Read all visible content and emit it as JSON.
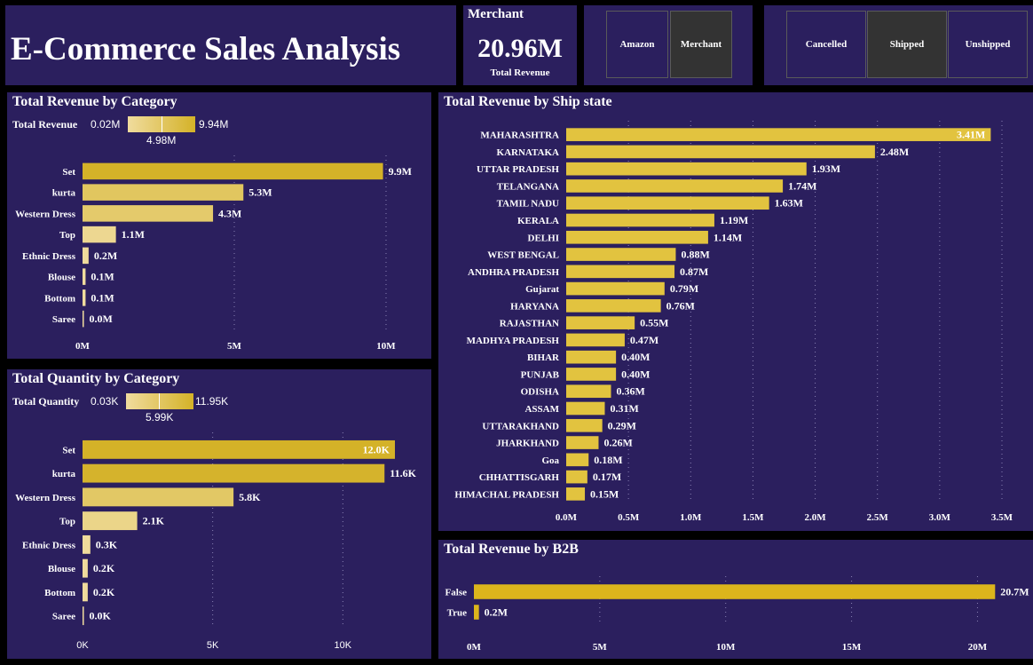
{
  "header": {
    "title": "E-Commerce Sales Analysis"
  },
  "card": {
    "label": "Merchant",
    "value": "20.96M",
    "sub": "Total Revenue"
  },
  "slicer_fulfilment": {
    "options": [
      "Amazon",
      "Merchant"
    ],
    "selected": "Merchant"
  },
  "slicer_status": {
    "options": [
      "Cancelled",
      "Shipped",
      "Unshipped"
    ],
    "selected": "Shipped"
  },
  "charts": [
    {
      "id": "rev-cat",
      "title": "Total Revenue by Category",
      "legend": {
        "label": "Total Revenue",
        "min": "0.02M",
        "max": "9.94M",
        "mid": "4.98M"
      },
      "chart_data": {
        "type": "bar",
        "orientation": "horizontal",
        "categories": [
          "Set",
          "kurta",
          "Western Dress",
          "Top",
          "Ethnic Dress",
          "Blouse",
          "Bottom",
          "Saree"
        ],
        "values": [
          9.9,
          5.3,
          4.3,
          1.1,
          0.2,
          0.1,
          0.1,
          0.0
        ],
        "value_labels": [
          "9.9M",
          "5.3M",
          "4.3M",
          "1.1M",
          "0.2M",
          "0.1M",
          "0.1M",
          "0.0M"
        ],
        "xlim": [
          0,
          10
        ],
        "xticks": [
          0,
          5,
          10
        ],
        "xtick_labels": [
          "0M",
          "5M",
          "10M"
        ],
        "color_scale": [
          "#f0dc9e",
          "#d4b228"
        ],
        "grid": true
      }
    },
    {
      "id": "qty-cat",
      "title": "Total Quantity by Category",
      "legend": {
        "label": "Total Quantity",
        "min": "0.03K",
        "max": "11.95K",
        "mid": "5.99K"
      },
      "chart_data": {
        "type": "bar",
        "orientation": "horizontal",
        "categories": [
          "Set",
          "kurta",
          "Western Dress",
          "Top",
          "Ethnic Dress",
          "Blouse",
          "Bottom",
          "Saree"
        ],
        "values": [
          12.0,
          11.6,
          5.8,
          2.1,
          0.3,
          0.2,
          0.2,
          0.0
        ],
        "value_labels": [
          "12.0K",
          "11.6K",
          "5.8K",
          "2.1K",
          "0.3K",
          "0.2K",
          "0.2K",
          "0.0K"
        ],
        "xlim": [
          0,
          12
        ],
        "xticks": [
          0,
          5,
          10
        ],
        "xtick_labels": [
          "0K",
          "5K",
          "10K"
        ],
        "color_scale": [
          "#f0dc9e",
          "#d4b228"
        ],
        "grid": true
      }
    },
    {
      "id": "rev-state",
      "title": "Total Revenue by Ship state",
      "chart_data": {
        "type": "bar",
        "orientation": "horizontal",
        "categories": [
          "MAHARASHTRA",
          "KARNATAKA",
          "UTTAR PRADESH",
          "TELANGANA",
          "TAMIL NADU",
          "KERALA",
          "DELHI",
          "WEST BENGAL",
          "ANDHRA PRADESH",
          "Gujarat",
          "HARYANA",
          "RAJASTHAN",
          "MADHYA PRADESH",
          "BIHAR",
          "PUNJAB",
          "ODISHA",
          "ASSAM",
          "UTTARAKHAND",
          "JHARKHAND",
          "Goa",
          "CHHATTISGARH",
          "HIMACHAL PRADESH"
        ],
        "values": [
          3.41,
          2.48,
          1.93,
          1.74,
          1.63,
          1.19,
          1.14,
          0.88,
          0.87,
          0.79,
          0.76,
          0.55,
          0.47,
          0.4,
          0.4,
          0.36,
          0.31,
          0.29,
          0.26,
          0.18,
          0.17,
          0.15
        ],
        "value_labels": [
          "3.41M",
          "2.48M",
          "1.93M",
          "1.74M",
          "1.63M",
          "1.19M",
          "1.14M",
          "0.88M",
          "0.87M",
          "0.79M",
          "0.76M",
          "0.55M",
          "0.47M",
          "0.40M",
          "0.40M",
          "0.36M",
          "0.31M",
          "0.29M",
          "0.26M",
          "0.18M",
          "0.17M",
          "0.15M"
        ],
        "xlim": [
          0,
          3.5
        ],
        "xticks": [
          0,
          0.5,
          1.0,
          1.5,
          2.0,
          2.5,
          3.0,
          3.5
        ],
        "xtick_labels": [
          "0.0M",
          "0.5M",
          "1.0M",
          "1.5M",
          "2.0M",
          "2.5M",
          "3.0M",
          "3.5M"
        ],
        "color": "#e2c33f",
        "grid": true
      }
    },
    {
      "id": "rev-b2b",
      "title": "Total Revenue by B2B",
      "chart_data": {
        "type": "bar",
        "orientation": "horizontal",
        "categories": [
          "False",
          "True"
        ],
        "values": [
          20.7,
          0.2
        ],
        "value_labels": [
          "20.7M",
          "0.2M"
        ],
        "xlim": [
          0,
          21.5
        ],
        "xticks": [
          0,
          5,
          10,
          15,
          20
        ],
        "xtick_labels": [
          "0M",
          "5M",
          "10M",
          "15M",
          "20M"
        ],
        "color": "#dcb51c",
        "grid": true
      }
    }
  ]
}
